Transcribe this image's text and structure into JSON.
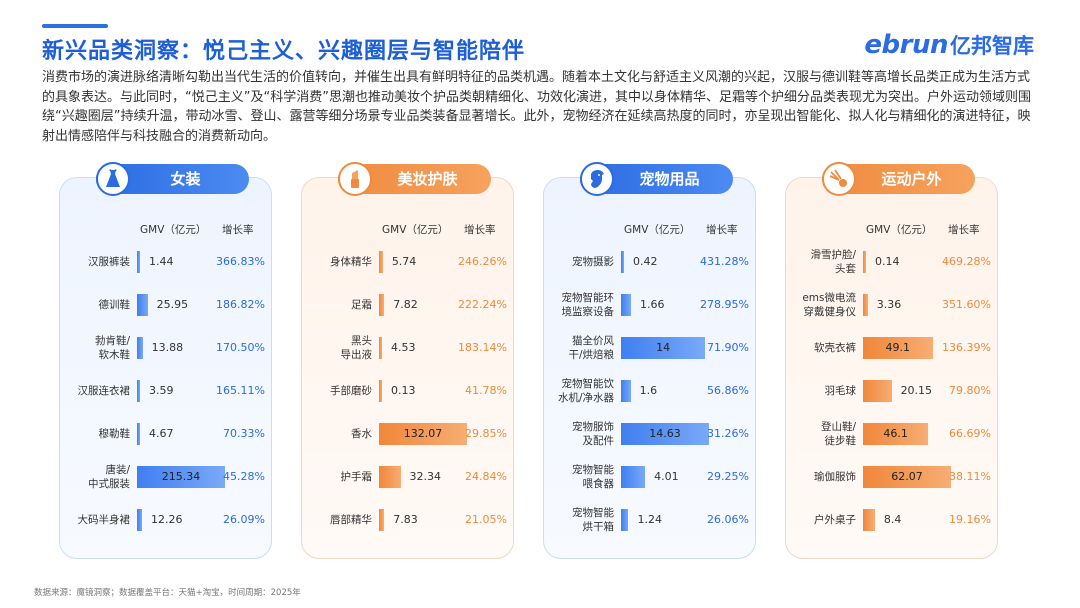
{
  "title": "新兴品类洞察：悦己主义、兴趣圈层与智能陪伴",
  "logo": {
    "latin": "ebrun",
    "cn": "亿邦智库"
  },
  "intro": "消费市场的演进脉络清晰勾勒出当代生活的价值转向，并催生出具有鲜明特征的品类机遇。随着本土文化与舒适主义风潮的兴起，汉服与德训鞋等高增长品类正成为生活方式的具象表达。与此同时，“悦己主义”及“科学消费”思潮也推动美妆个护品类朝精细化、功效化演进，其中以身体精华、足霜等个护细分品类表现尤为突出。户外运动领域则围绕“兴趣圈层”持续升温，带动冰雪、登山、露营等细分场景专业品类装备显著增长。此外，宠物经济在延续高热度的同时，亦呈现出智能化、拟人化与精细化的演进特征，映射出情感陪伴与科技融合的消费新动向。",
  "col_gmv": "GMV（亿元）",
  "col_growth": "增长率",
  "source": "数据来源：魔镜洞察；数据覆盖平台：天猫+淘宝，时间周期：2025年",
  "colors": {
    "blue": "#2a6be2",
    "orange": "#f08a3e"
  },
  "chart_data": [
    {
      "type": "bar",
      "title": "女装",
      "icon": "dress-icon",
      "theme": "blue",
      "xmax": 215.34,
      "categories": [
        "汉服裤装",
        "德训鞋",
        "勃肯鞋/软木鞋",
        "汉服连衣裙",
        "穆勒鞋",
        "唐装/中式服装",
        "大码半身裙"
      ],
      "category_lines": [
        [
          "汉服裤装"
        ],
        [
          "德训鞋"
        ],
        [
          "勃肯鞋/",
          "软木鞋"
        ],
        [
          "汉服连衣裙"
        ],
        [
          "穆勒鞋"
        ],
        [
          "唐装/",
          "中式服装"
        ],
        [
          "大码半身裙"
        ]
      ],
      "gmv": [
        1.44,
        25.95,
        13.88,
        3.59,
        4.67,
        215.34,
        12.26
      ],
      "growth": [
        "366.83%",
        "186.82%",
        "170.50%",
        "165.11%",
        "70.33%",
        "45.28%",
        "26.09%"
      ]
    },
    {
      "type": "bar",
      "title": "美妆护肤",
      "icon": "lipstick-icon",
      "theme": "orange",
      "xmax": 132.07,
      "categories": [
        "身体精华",
        "足霜",
        "黑头导出液",
        "手部磨砂",
        "香水",
        "护手霜",
        "唇部精华"
      ],
      "category_lines": [
        [
          "身体精华"
        ],
        [
          "足霜"
        ],
        [
          "黑头",
          "导出液"
        ],
        [
          "手部磨砂"
        ],
        [
          "香水"
        ],
        [
          "护手霜"
        ],
        [
          "唇部精华"
        ]
      ],
      "gmv": [
        5.74,
        7.82,
        4.53,
        0.13,
        132.07,
        32.34,
        7.83
      ],
      "growth": [
        "246.26%",
        "222.24%",
        "183.14%",
        "41.78%",
        "29.85%",
        "24.84%",
        "21.05%"
      ]
    },
    {
      "type": "bar",
      "title": "宠物用品",
      "icon": "pet-dog-icon",
      "theme": "blue",
      "xmax": 14.63,
      "categories": [
        "宠物摄影",
        "宠物智能环境监察设备",
        "猫全价风干/烘焙粮",
        "宠物智能饮水机/净水器",
        "宠物服饰及配件",
        "宠物智能喂食器",
        "宠物智能烘干箱"
      ],
      "category_lines": [
        [
          "宠物摄影"
        ],
        [
          "宠物智能环",
          "境监察设备"
        ],
        [
          "猫全价风",
          "干/烘焙粮"
        ],
        [
          "宠物智能饮",
          "水机/净水器"
        ],
        [
          "宠物服饰",
          "及配件"
        ],
        [
          "宠物智能",
          "喂食器"
        ],
        [
          "宠物智能",
          "烘干箱"
        ]
      ],
      "gmv": [
        0.42,
        1.66,
        14,
        1.6,
        14.63,
        4.01,
        1.24
      ],
      "growth": [
        "431.28%",
        "278.95%",
        "71.90%",
        "56.86%",
        "31.26%",
        "29.25%",
        "26.06%"
      ]
    },
    {
      "type": "bar",
      "title": "运动户外",
      "icon": "shuttlecock-icon",
      "theme": "orange",
      "xmax": 62.07,
      "categories": [
        "滑雪护脸/头套",
        "ems微电流穿戴健身仪",
        "软壳衣裤",
        "羽毛球",
        "登山鞋/徒步鞋",
        "瑜伽服饰",
        "户外桌子"
      ],
      "category_lines": [
        [
          "滑雪护脸/",
          "头套"
        ],
        [
          "ems微电流",
          "穿戴健身仪"
        ],
        [
          "软壳衣裤"
        ],
        [
          "羽毛球"
        ],
        [
          "登山鞋/",
          "徒步鞋"
        ],
        [
          "瑜伽服饰"
        ],
        [
          "户外桌子"
        ]
      ],
      "gmv": [
        0.14,
        3.36,
        49.1,
        20.15,
        46.1,
        62.07,
        8.4
      ],
      "growth": [
        "469.28%",
        "351.60%",
        "136.39%",
        "79.80%",
        "66.69%",
        "38.11%",
        "19.16%"
      ]
    }
  ]
}
